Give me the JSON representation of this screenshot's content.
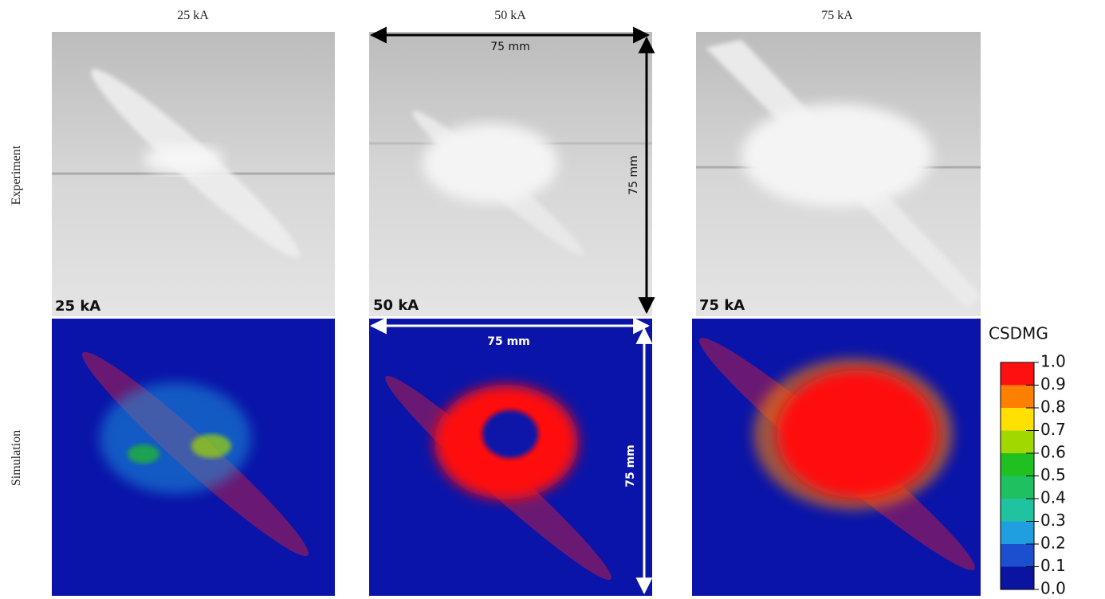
{
  "columns": [
    "25 kA",
    "50 kA",
    "75 kA"
  ],
  "rows": [
    "Experiment",
    "Simulation"
  ],
  "panel_labels": [
    "25 kA",
    "50 kA",
    "75 kA"
  ],
  "dimensions": {
    "experiment": [
      "75 mm",
      "75 mm"
    ],
    "simulation": [
      "75 mm",
      "75 mm"
    ]
  },
  "colorbar": {
    "title": "CSDMG",
    "range": [
      0,
      1
    ],
    "ticks": [
      {
        "value": 0,
        "label": "0.0"
      },
      {
        "value": 0.1,
        "label": "0.1"
      },
      {
        "value": 0.2,
        "label": "0.2"
      },
      {
        "value": 0.3,
        "label": "0.3"
      },
      {
        "value": 0.4,
        "label": "0.4"
      },
      {
        "value": 0.5,
        "label": "0.5"
      },
      {
        "value": 0.6,
        "label": "0.6"
      },
      {
        "value": 0.7,
        "label": "0.7"
      },
      {
        "value": 0.8,
        "label": "0.8"
      },
      {
        "value": 0.9,
        "label": "0.9"
      },
      {
        "value": 1,
        "label": "1.0"
      }
    ],
    "colors": [
      "#0a14a0",
      "#1c4fd0",
      "#1f9fe0",
      "#20c3a0",
      "#1fc060",
      "#20c020",
      "#a0d800",
      "#ffe000",
      "#ff8000",
      "#ff1010"
    ]
  }
}
